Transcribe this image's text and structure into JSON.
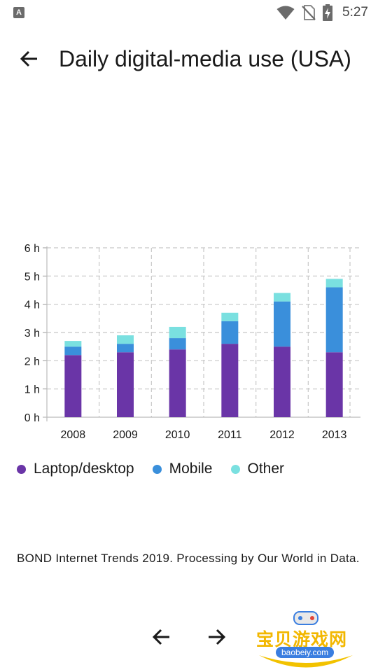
{
  "status_bar": {
    "time": "5:27",
    "notification_icon": "A",
    "icons": [
      "wifi-icon",
      "no-sim-icon",
      "battery-charging-icon"
    ]
  },
  "app_bar": {
    "back_icon": "arrow-left-icon",
    "title": "Daily digital-media use (USA)"
  },
  "chart_data": {
    "type": "bar",
    "stacked": true,
    "categories": [
      "2008",
      "2009",
      "2010",
      "2011",
      "2012",
      "2013"
    ],
    "series": [
      {
        "name": "Laptop/desktop",
        "color": "#6a35a7",
        "values": [
          2.2,
          2.3,
          2.4,
          2.6,
          2.5,
          2.3
        ]
      },
      {
        "name": "Mobile",
        "color": "#3a8fdb",
        "values": [
          0.3,
          0.3,
          0.4,
          0.8,
          1.6,
          2.3
        ]
      },
      {
        "name": "Other",
        "color": "#7ae0e0",
        "values": [
          0.2,
          0.3,
          0.4,
          0.3,
          0.3,
          0.3
        ]
      }
    ],
    "y_ticks": [
      "0 h",
      "1 h",
      "2 h",
      "3 h",
      "4 h",
      "5 h",
      "6 h"
    ],
    "ylim": [
      0,
      6
    ],
    "grid": true,
    "legend_position": "bottom"
  },
  "source_text": "BOND Internet Trends 2019. Processing by Our World in Data.",
  "nav": {
    "prev_icon": "arrow-left-icon",
    "next_icon": "arrow-right-icon"
  },
  "watermark": {
    "text": "宝贝游戏网",
    "sub": "baobeiy.com"
  }
}
